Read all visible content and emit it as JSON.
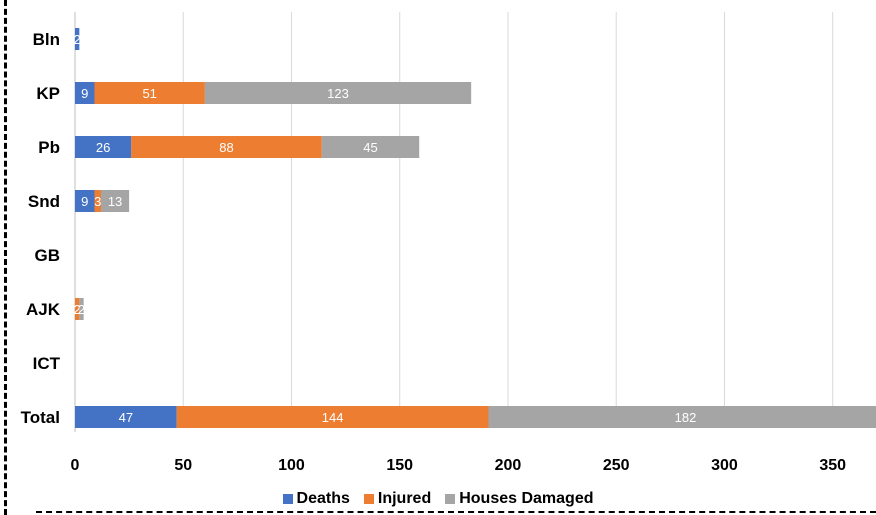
{
  "chart_data": {
    "type": "bar",
    "orientation": "horizontal",
    "stacked": true,
    "categories": [
      "Bln",
      "KP",
      "Pb",
      "Snd",
      "GB",
      "AJK",
      "ICT",
      "Total"
    ],
    "series": [
      {
        "name": "Deaths",
        "color": "#4472c4",
        "values": [
          2,
          9,
          26,
          9,
          0,
          0,
          0,
          47
        ]
      },
      {
        "name": "Injured",
        "color": "#ed7d31",
        "values": [
          0,
          51,
          88,
          3,
          0,
          2,
          0,
          144
        ]
      },
      {
        "name": "Houses Damaged",
        "color": "#a5a5a5",
        "values": [
          0,
          123,
          45,
          13,
          0,
          2,
          0,
          182
        ]
      }
    ],
    "xlim": [
      0,
      370
    ],
    "x_ticks": [
      0,
      50,
      100,
      150,
      200,
      250,
      300,
      350
    ],
    "grid": true,
    "legend_position": "bottom"
  }
}
